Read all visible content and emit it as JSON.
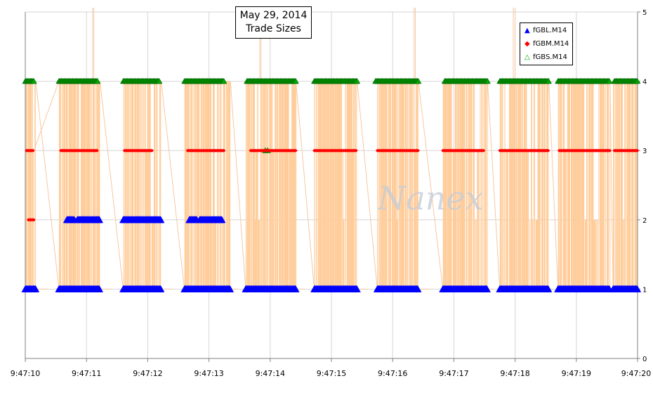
{
  "watermark": "Nanex",
  "chart_data": {
    "type": "scatter",
    "title": "May 29, 2014",
    "subtitle": "Trade Sizes",
    "xlabel": "",
    "ylabel": "",
    "x_ticks": [
      "9:47:10",
      "9:47:11",
      "9:47:12",
      "9:47:13",
      "9:47:14",
      "9:47:15",
      "9:47:16",
      "9:47:17",
      "9:47:18",
      "9:47:19",
      "9:47:20"
    ],
    "y_ticks": [
      "0",
      "1",
      "2",
      "3",
      "4",
      "5"
    ],
    "xlim": [
      "9:47:10",
      "9:47:20"
    ],
    "ylim": [
      0,
      5
    ],
    "y_axis_side": "right",
    "grid": true,
    "legend_position": "top-right",
    "series": [
      {
        "name": "fGBL.M14",
        "marker": "filled-triangle",
        "color": "#0000ff",
        "clusters": [
          {
            "start": 10.0,
            "end": 10.17,
            "value": 1
          },
          {
            "start": 10.55,
            "end": 11.22,
            "value": 1
          },
          {
            "start": 11.6,
            "end": 12.22,
            "value": 1
          },
          {
            "start": 12.6,
            "end": 13.35,
            "value": 1
          },
          {
            "start": 13.6,
            "end": 14.42,
            "value": 1
          },
          {
            "start": 14.72,
            "end": 15.42,
            "value": 1
          },
          {
            "start": 15.75,
            "end": 16.42,
            "value": 1
          },
          {
            "start": 16.82,
            "end": 17.55,
            "value": 1
          },
          {
            "start": 17.75,
            "end": 18.55,
            "value": 1
          },
          {
            "start": 18.7,
            "end": 19.55,
            "value": 1
          },
          {
            "start": 19.6,
            "end": 20.0,
            "value": 1
          },
          {
            "start": 10.68,
            "end": 10.8,
            "value": 2
          },
          {
            "start": 10.85,
            "end": 11.22,
            "value": 2
          },
          {
            "start": 11.6,
            "end": 12.22,
            "value": 2
          },
          {
            "start": 12.68,
            "end": 12.8,
            "value": 2
          },
          {
            "start": 12.85,
            "end": 13.22,
            "value": 2
          }
        ]
      },
      {
        "name": "fGBM.M14",
        "marker": "diamond",
        "color": "#ff0000",
        "clusters": [
          {
            "start": 10.02,
            "end": 10.14,
            "value": 3
          },
          {
            "start": 10.58,
            "end": 11.18,
            "value": 3
          },
          {
            "start": 11.62,
            "end": 12.08,
            "value": 3
          },
          {
            "start": 12.65,
            "end": 13.25,
            "value": 3
          },
          {
            "start": 13.68,
            "end": 14.42,
            "value": 3
          },
          {
            "start": 14.72,
            "end": 15.42,
            "value": 3
          },
          {
            "start": 15.75,
            "end": 16.42,
            "value": 3
          },
          {
            "start": 16.82,
            "end": 17.5,
            "value": 3
          },
          {
            "start": 17.75,
            "end": 18.55,
            "value": 3
          },
          {
            "start": 18.72,
            "end": 19.55,
            "value": 3
          },
          {
            "start": 19.62,
            "end": 20.0,
            "value": 3
          },
          {
            "start": 10.05,
            "end": 10.14,
            "value": 2
          },
          {
            "start": 10.7,
            "end": 11.2,
            "value": 2
          },
          {
            "start": 11.62,
            "end": 12.2,
            "value": 2
          },
          {
            "start": 12.7,
            "end": 13.2,
            "value": 2
          }
        ],
        "isolated": [
          {
            "x": 10.07,
            "y": 1
          },
          {
            "x": 13.74,
            "y": 1
          },
          {
            "x": 13.86,
            "y": 3
          },
          {
            "x": 17.23,
            "y": 3
          },
          {
            "x": 19.33,
            "y": 3
          },
          {
            "x": 19.5,
            "y": 3
          }
        ]
      },
      {
        "name": "fGBS.M14",
        "marker": "triangle",
        "color": "#00aa00",
        "clusters": [
          {
            "start": 10.0,
            "end": 10.14,
            "value": 4
          },
          {
            "start": 10.55,
            "end": 11.18,
            "value": 4
          },
          {
            "start": 11.6,
            "end": 12.2,
            "value": 4
          },
          {
            "start": 12.6,
            "end": 13.25,
            "value": 4
          },
          {
            "start": 13.62,
            "end": 14.42,
            "value": 4
          },
          {
            "start": 14.72,
            "end": 15.42,
            "value": 4
          },
          {
            "start": 15.72,
            "end": 16.42,
            "value": 4
          },
          {
            "start": 16.85,
            "end": 17.55,
            "value": 4
          },
          {
            "start": 17.75,
            "end": 18.55,
            "value": 4
          },
          {
            "start": 18.7,
            "end": 19.55,
            "value": 4
          },
          {
            "start": 19.62,
            "end": 20.0,
            "value": 4
          }
        ],
        "isolated": [
          {
            "x": 13.92,
            "y": 3
          },
          {
            "x": 13.96,
            "y": 3
          },
          {
            "x": 13.94,
            "y": 1
          }
        ]
      }
    ],
    "spikes_above_5": [
      11.1,
      11.12,
      13.83,
      13.85,
      16.35,
      16.37,
      17.97,
      18.0
    ]
  }
}
